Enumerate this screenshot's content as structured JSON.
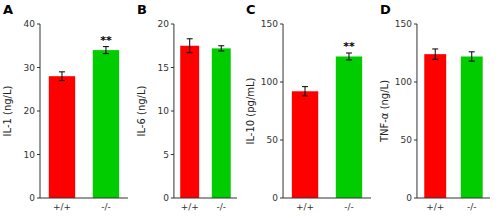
{
  "chart_data": [
    {
      "type": "bar",
      "title": "A",
      "ylabel": "IL-1 (ng/L)",
      "categories": [
        "+/+",
        "-/-"
      ],
      "values": [
        28.0,
        34.0
      ],
      "errors": [
        1.0,
        0.8
      ],
      "colors": [
        "#ff0000",
        "#00cc00"
      ],
      "ylim": [
        0,
        40
      ],
      "yticks": [
        0,
        10,
        20,
        30,
        40
      ],
      "grid": false,
      "annotations": [
        {
          "text": "**",
          "category": "-/-"
        }
      ]
    },
    {
      "type": "bar",
      "title": "B",
      "ylabel": "IL-6 (ng/L)",
      "categories": [
        "+/+",
        "-/-"
      ],
      "values": [
        17.5,
        17.2
      ],
      "errors": [
        0.8,
        0.3
      ],
      "colors": [
        "#ff0000",
        "#00cc00"
      ],
      "ylim": [
        0,
        20
      ],
      "yticks": [
        0,
        5,
        10,
        15,
        20
      ],
      "grid": false
    },
    {
      "type": "bar",
      "title": "C",
      "ylabel": "IL-10 (pg/mL)",
      "categories": [
        "+/+",
        "-/-"
      ],
      "values": [
        92.0,
        122.0
      ],
      "errors": [
        4.0,
        3.0
      ],
      "colors": [
        "#ff0000",
        "#00cc00"
      ],
      "ylim": [
        0,
        150
      ],
      "yticks": [
        0,
        50,
        100,
        150
      ],
      "grid": false,
      "annotations": [
        {
          "text": "**",
          "category": "-/-"
        }
      ]
    },
    {
      "type": "bar",
      "title": "D",
      "ylabel": "TNF-α (ng/L)",
      "categories": [
        "+/+",
        "-/-"
      ],
      "values": [
        124.0,
        122.0
      ],
      "errors": [
        4.5,
        4.0
      ],
      "colors": [
        "#ff0000",
        "#00cc00"
      ],
      "ylim": [
        0,
        150
      ],
      "yticks": [
        0,
        50,
        100,
        150
      ],
      "grid": false
    }
  ]
}
